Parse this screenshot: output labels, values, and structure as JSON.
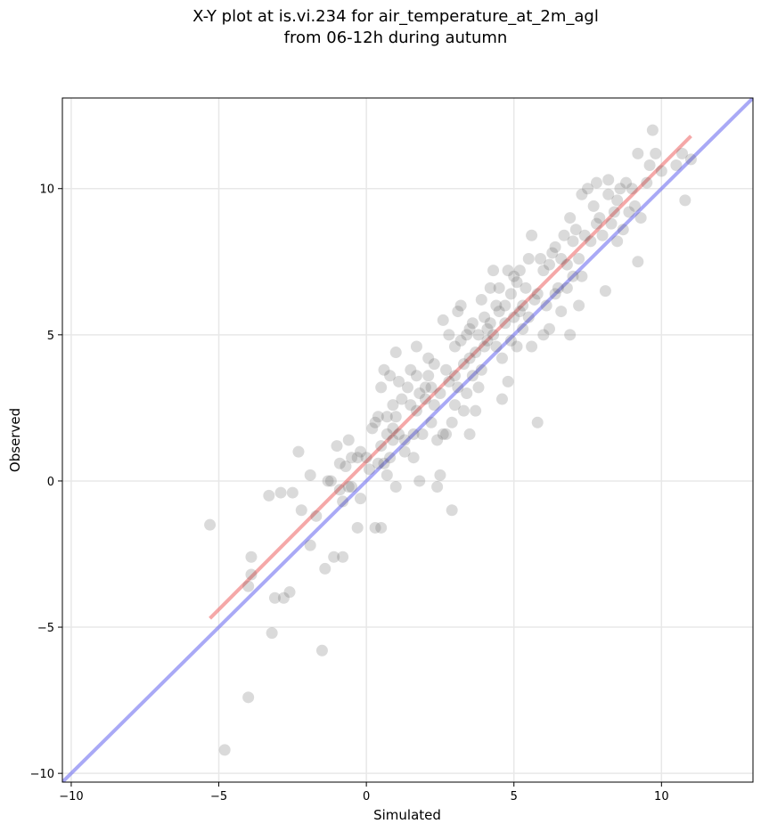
{
  "chart_data": {
    "type": "scatter",
    "title_line1": "X-Y plot at is.vi.234 for air_temperature_at_2m_agl",
    "title_line2": "from 06-12h during autumn",
    "xlabel": "Simulated",
    "ylabel": "Observed",
    "xlim": [
      -10.3,
      13.1
    ],
    "ylim": [
      -10.3,
      13.1
    ],
    "xticks": [
      -10,
      -5,
      0,
      5,
      10
    ],
    "yticks": [
      -10,
      -5,
      0,
      5,
      10
    ],
    "xtick_labels": [
      "−10",
      "−5",
      "0",
      "5",
      "10"
    ],
    "ytick_labels": [
      "−10",
      "−5",
      "0",
      "5",
      "10"
    ],
    "grid": true,
    "colors": {
      "points": "#555555",
      "one_to_one": "#6f6ff0",
      "fit": "#f07a7a",
      "grid": "#e8e8e8",
      "axes": "#000000"
    },
    "fit_line": {
      "x": [
        -5.3,
        11.0
      ],
      "y": [
        -4.7,
        11.8
      ]
    },
    "one_to_one_line": {
      "x": [
        -10.3,
        13.1
      ],
      "y": [
        -10.3,
        13.1
      ]
    },
    "points": [
      [
        -5.3,
        -1.5
      ],
      [
        -4.8,
        -9.2
      ],
      [
        -4.0,
        -7.4
      ],
      [
        -4.0,
        -3.6
      ],
      [
        -3.9,
        -2.6
      ],
      [
        -3.9,
        -3.2
      ],
      [
        -3.2,
        -5.2
      ],
      [
        -3.1,
        -4.0
      ],
      [
        -2.8,
        -4.0
      ],
      [
        -2.6,
        -3.8
      ],
      [
        -3.3,
        -0.5
      ],
      [
        -2.9,
        -0.4
      ],
      [
        -2.5,
        -0.4
      ],
      [
        -2.3,
        1.0
      ],
      [
        -2.2,
        -1.0
      ],
      [
        -1.9,
        -2.2
      ],
      [
        -1.9,
        0.2
      ],
      [
        -1.7,
        -1.2
      ],
      [
        -1.5,
        -5.8
      ],
      [
        -1.4,
        -3.0
      ],
      [
        -1.3,
        0.0
      ],
      [
        -1.2,
        0.0
      ],
      [
        -1.1,
        -2.6
      ],
      [
        -1.0,
        1.2
      ],
      [
        -0.9,
        -0.3
      ],
      [
        -0.9,
        0.6
      ],
      [
        -0.8,
        -2.6
      ],
      [
        -0.8,
        -0.7
      ],
      [
        -0.7,
        0.5
      ],
      [
        -0.6,
        -0.2
      ],
      [
        -0.6,
        1.4
      ],
      [
        -0.5,
        0.8
      ],
      [
        -0.5,
        -0.2
      ],
      [
        -0.3,
        -1.6
      ],
      [
        -0.3,
        0.8
      ],
      [
        -0.2,
        1.0
      ],
      [
        -0.2,
        -0.6
      ],
      [
        0.0,
        0.8
      ],
      [
        0.1,
        0.4
      ],
      [
        0.2,
        1.8
      ],
      [
        0.3,
        2.0
      ],
      [
        0.3,
        -1.6
      ],
      [
        0.4,
        0.6
      ],
      [
        0.4,
        2.2
      ],
      [
        0.5,
        1.2
      ],
      [
        0.5,
        3.2
      ],
      [
        0.5,
        -1.6
      ],
      [
        0.6,
        3.8
      ],
      [
        0.6,
        0.6
      ],
      [
        0.7,
        2.2
      ],
      [
        0.7,
        0.2
      ],
      [
        0.7,
        1.6
      ],
      [
        0.8,
        3.6
      ],
      [
        0.8,
        0.8
      ],
      [
        0.9,
        2.6
      ],
      [
        0.9,
        1.4
      ],
      [
        0.9,
        1.8
      ],
      [
        1.0,
        2.2
      ],
      [
        1.0,
        4.4
      ],
      [
        1.0,
        -0.2
      ],
      [
        1.1,
        3.4
      ],
      [
        1.1,
        1.6
      ],
      [
        1.2,
        2.8
      ],
      [
        1.3,
        1.4
      ],
      [
        1.3,
        1.0
      ],
      [
        1.4,
        3.2
      ],
      [
        1.5,
        2.6
      ],
      [
        1.5,
        3.8
      ],
      [
        1.6,
        1.6
      ],
      [
        1.6,
        0.8
      ],
      [
        1.7,
        3.6
      ],
      [
        1.7,
        4.6
      ],
      [
        1.7,
        2.4
      ],
      [
        1.8,
        3.0
      ],
      [
        1.8,
        0.0
      ],
      [
        1.9,
        1.6
      ],
      [
        2.0,
        3.2
      ],
      [
        2.0,
        2.8
      ],
      [
        2.1,
        3.6
      ],
      [
        2.1,
        4.2
      ],
      [
        2.2,
        2.0
      ],
      [
        2.2,
        3.2
      ],
      [
        2.3,
        2.6
      ],
      [
        2.3,
        4.0
      ],
      [
        2.4,
        -0.2
      ],
      [
        2.4,
        1.4
      ],
      [
        2.5,
        3.0
      ],
      [
        2.5,
        0.2
      ],
      [
        2.6,
        1.6
      ],
      [
        2.6,
        5.5
      ],
      [
        2.7,
        3.8
      ],
      [
        2.7,
        1.6
      ],
      [
        2.8,
        3.4
      ],
      [
        2.8,
        5.0
      ],
      [
        2.9,
        2.0
      ],
      [
        2.9,
        -1.0
      ],
      [
        3.0,
        3.6
      ],
      [
        3.0,
        4.6
      ],
      [
        3.0,
        2.6
      ],
      [
        3.1,
        5.8
      ],
      [
        3.1,
        3.2
      ],
      [
        3.2,
        4.8
      ],
      [
        3.2,
        6.0
      ],
      [
        3.3,
        4.0
      ],
      [
        3.3,
        2.4
      ],
      [
        3.4,
        5.0
      ],
      [
        3.4,
        3.0
      ],
      [
        3.5,
        5.2
      ],
      [
        3.5,
        4.2
      ],
      [
        3.5,
        1.6
      ],
      [
        3.6,
        5.4
      ],
      [
        3.6,
        3.6
      ],
      [
        3.7,
        4.4
      ],
      [
        3.7,
        2.4
      ],
      [
        3.8,
        5.0
      ],
      [
        3.8,
        3.2
      ],
      [
        3.9,
        6.2
      ],
      [
        3.9,
        3.8
      ],
      [
        4.0,
        5.6
      ],
      [
        4.0,
        4.6
      ],
      [
        4.1,
        4.8
      ],
      [
        4.1,
        5.2
      ],
      [
        4.2,
        6.6
      ],
      [
        4.2,
        5.4
      ],
      [
        4.3,
        7.2
      ],
      [
        4.3,
        5.0
      ],
      [
        4.4,
        6.0
      ],
      [
        4.4,
        4.6
      ],
      [
        4.5,
        6.6
      ],
      [
        4.5,
        5.8
      ],
      [
        4.6,
        4.2
      ],
      [
        4.6,
        2.8
      ],
      [
        4.7,
        6.0
      ],
      [
        4.7,
        5.4
      ],
      [
        4.8,
        7.2
      ],
      [
        4.8,
        3.4
      ],
      [
        4.9,
        6.4
      ],
      [
        4.9,
        4.8
      ],
      [
        5.0,
        7.0
      ],
      [
        5.0,
        5.6
      ],
      [
        5.1,
        6.8
      ],
      [
        5.1,
        4.6
      ],
      [
        5.2,
        7.2
      ],
      [
        5.2,
        5.8
      ],
      [
        5.3,
        6.0
      ],
      [
        5.3,
        5.2
      ],
      [
        5.4,
        6.6
      ],
      [
        5.5,
        7.6
      ],
      [
        5.5,
        5.6
      ],
      [
        5.6,
        8.4
      ],
      [
        5.6,
        4.6
      ],
      [
        5.7,
        6.2
      ],
      [
        5.8,
        6.4
      ],
      [
        5.8,
        2.0
      ],
      [
        5.9,
        7.6
      ],
      [
        6.0,
        5.0
      ],
      [
        6.0,
        7.2
      ],
      [
        6.1,
        6.0
      ],
      [
        6.2,
        7.4
      ],
      [
        6.2,
        5.2
      ],
      [
        6.3,
        7.8
      ],
      [
        6.4,
        6.4
      ],
      [
        6.4,
        8.0
      ],
      [
        6.5,
        6.6
      ],
      [
        6.6,
        7.6
      ],
      [
        6.6,
        5.8
      ],
      [
        6.7,
        8.4
      ],
      [
        6.8,
        7.4
      ],
      [
        6.8,
        6.6
      ],
      [
        6.9,
        5.0
      ],
      [
        6.9,
        9.0
      ],
      [
        7.0,
        8.2
      ],
      [
        7.0,
        7.0
      ],
      [
        7.1,
        8.6
      ],
      [
        7.2,
        7.6
      ],
      [
        7.2,
        6.0
      ],
      [
        7.3,
        9.8
      ],
      [
        7.3,
        7.0
      ],
      [
        7.4,
        8.4
      ],
      [
        7.5,
        10.0
      ],
      [
        7.6,
        8.2
      ],
      [
        7.7,
        9.4
      ],
      [
        7.8,
        10.2
      ],
      [
        7.8,
        8.8
      ],
      [
        7.9,
        9.0
      ],
      [
        8.0,
        8.4
      ],
      [
        8.1,
        6.5
      ],
      [
        8.2,
        9.8
      ],
      [
        8.2,
        10.3
      ],
      [
        8.3,
        8.8
      ],
      [
        8.4,
        9.2
      ],
      [
        8.5,
        9.6
      ],
      [
        8.5,
        8.2
      ],
      [
        8.6,
        10.0
      ],
      [
        8.7,
        8.6
      ],
      [
        8.8,
        10.2
      ],
      [
        8.9,
        9.2
      ],
      [
        9.0,
        10.0
      ],
      [
        9.1,
        9.4
      ],
      [
        9.2,
        11.2
      ],
      [
        9.2,
        7.5
      ],
      [
        9.3,
        9.0
      ],
      [
        9.5,
        10.2
      ],
      [
        9.6,
        10.8
      ],
      [
        9.7,
        12.0
      ],
      [
        9.8,
        11.2
      ],
      [
        10.0,
        10.6
      ],
      [
        10.5,
        10.8
      ],
      [
        10.7,
        11.2
      ],
      [
        10.8,
        9.6
      ],
      [
        11.0,
        11.0
      ]
    ]
  }
}
